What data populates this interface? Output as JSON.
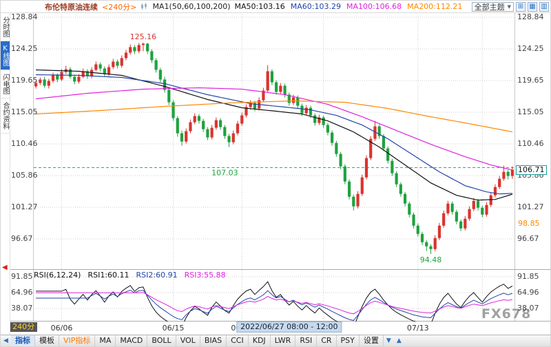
{
  "header": {
    "symbol": "布伦特原油连续",
    "period": "<240分>",
    "ma_group": "MA1(50,60,100,200)",
    "ma_values": [
      {
        "label": "MA50:103.16",
        "color": "#111111"
      },
      {
        "label": "MA60:103.29",
        "color": "#2244aa"
      },
      {
        "label": "MA100:106.68",
        "color": "#dd22dd"
      },
      {
        "label": "MA200:112.21",
        "color": "#ff8800"
      }
    ],
    "theme_select": "全部主题"
  },
  "sidebar": {
    "tabs": [
      {
        "label": "分时图",
        "active": false
      },
      {
        "label": "K线图",
        "active": true
      },
      {
        "label": "闪电图",
        "active": false
      },
      {
        "label": "合约资料",
        "active": false
      }
    ]
  },
  "axes": {
    "price_labels": [
      "128.84",
      "124.25",
      "119.65",
      "115.05",
      "110.46",
      "105.86",
      "101.27",
      "96.67"
    ],
    "rsi_labels": [
      "91.85",
      "64.96",
      "38.07"
    ],
    "dates": [
      {
        "label": "06/06",
        "bar": 6
      },
      {
        "label": "06/15",
        "bar": 32
      },
      {
        "label": "06/24",
        "bar": 48
      },
      {
        "label": "07/13",
        "bar": 89
      }
    ],
    "extra_grid_bars": [
      67,
      104
    ]
  },
  "annotations": {
    "high_label": "125.16",
    "high_bar": 25,
    "low_label": "94.48",
    "low_bar": 92,
    "last_line_label": "107.03",
    "last_line_price": 107.03,
    "line_label_bar": 44,
    "last_price_tag": "106.71",
    "last_price": 106.71,
    "settle_tag": "98.85",
    "settle_price": 98.85,
    "crosshair_label": "2022/06/27 08:00 - 12:00",
    "crosshair_bar": 59,
    "watermark": "FX678",
    "period_badge": "240分"
  },
  "rsi_panel": {
    "title": "RSI(6,12,24)",
    "v1": "RSI1:60.11",
    "v2": "RSI2:60.91",
    "v3": "RSI3:55.88"
  },
  "toolbar": {
    "left_arrow": "◀",
    "items": [
      {
        "label": "指标",
        "name": "indicator",
        "style": "active"
      },
      {
        "label": "模板",
        "name": "template",
        "style": ""
      },
      {
        "label": "VIP指标",
        "name": "vip-indicator",
        "style": "vip"
      },
      {
        "label": "MA",
        "name": "ma",
        "style": ""
      },
      {
        "label": "MACD",
        "name": "macd",
        "style": ""
      },
      {
        "label": "BOLL",
        "name": "boll",
        "style": ""
      },
      {
        "label": "VOL",
        "name": "vol",
        "style": ""
      },
      {
        "label": "BIAS",
        "name": "bias",
        "style": ""
      },
      {
        "label": "CCI",
        "name": "cci",
        "style": ""
      },
      {
        "label": "KDJ",
        "name": "kdj",
        "style": ""
      },
      {
        "label": "LWR",
        "name": "lwr",
        "style": ""
      },
      {
        "label": "RSI",
        "name": "rsi",
        "style": ""
      },
      {
        "label": "CR",
        "name": "cr",
        "style": ""
      },
      {
        "label": "PSY",
        "name": "psy",
        "style": ""
      },
      {
        "label": "设置",
        "name": "settings",
        "style": ""
      }
    ]
  },
  "colors": {
    "up": "#d9342e",
    "down": "#1fa23f",
    "last_line": "#18a0a0",
    "rsi": [
      "#111111",
      "#2244aa",
      "#dd22dd"
    ],
    "accent_blue": "#2b6cc8"
  },
  "chart_data": {
    "type": "candlestick",
    "title": "布伦特原油连续 240分",
    "price_axis_ticks": [
      128.84,
      124.25,
      119.65,
      115.05,
      110.46,
      105.86,
      101.27,
      96.67
    ],
    "rsi_axis_ticks": [
      91.85,
      64.96,
      38.07
    ],
    "rsi_periods": [
      6,
      12,
      24
    ],
    "candles": [
      [
        118.8,
        119.6,
        118.5,
        119.3
      ],
      [
        119.3,
        120.1,
        119.0,
        119.8
      ],
      [
        119.8,
        120.2,
        118.6,
        118.9
      ],
      [
        118.9,
        119.9,
        118.5,
        119.6
      ],
      [
        119.6,
        120.8,
        119.3,
        120.4
      ],
      [
        120.4,
        120.7,
        119.4,
        119.8
      ],
      [
        119.8,
        121.3,
        119.6,
        120.9
      ],
      [
        120.9,
        121.8,
        120.6,
        121.3
      ],
      [
        121.3,
        121.6,
        119.9,
        120.2
      ],
      [
        120.2,
        120.5,
        119.1,
        119.5
      ],
      [
        119.5,
        120.6,
        119.2,
        120.2
      ],
      [
        120.2,
        121.4,
        120.0,
        121.0
      ],
      [
        121.0,
        121.3,
        119.9,
        120.3
      ],
      [
        120.3,
        121.6,
        120.0,
        121.2
      ],
      [
        121.2,
        122.4,
        121.0,
        122.0
      ],
      [
        122.0,
        122.3,
        121.0,
        121.4
      ],
      [
        121.4,
        121.7,
        120.2,
        120.6
      ],
      [
        120.6,
        122.0,
        120.3,
        121.6
      ],
      [
        121.6,
        122.8,
        121.3,
        122.4
      ],
      [
        122.4,
        122.7,
        121.4,
        121.8
      ],
      [
        121.8,
        123.3,
        121.5,
        122.9
      ],
      [
        122.9,
        124.1,
        122.6,
        123.7
      ],
      [
        123.7,
        124.9,
        123.4,
        124.5
      ],
      [
        124.5,
        124.8,
        123.5,
        123.9
      ],
      [
        123.9,
        125.1,
        123.6,
        124.8
      ],
      [
        124.8,
        125.16,
        123.9,
        125.0
      ],
      [
        125.0,
        125.1,
        123.5,
        123.9
      ],
      [
        123.9,
        124.2,
        122.2,
        122.6
      ],
      [
        122.6,
        122.9,
        120.8,
        121.2
      ],
      [
        121.2,
        121.5,
        119.4,
        119.8
      ],
      [
        119.8,
        120.2,
        117.9,
        118.3
      ],
      [
        118.3,
        118.6,
        116.1,
        116.5
      ],
      [
        116.5,
        116.8,
        113.8,
        114.2
      ],
      [
        114.2,
        114.5,
        111.5,
        112.0
      ],
      [
        112.0,
        112.4,
        110.2,
        110.8
      ],
      [
        110.8,
        112.7,
        110.5,
        112.3
      ],
      [
        112.3,
        114.0,
        112.0,
        113.6
      ],
      [
        113.6,
        114.9,
        113.3,
        114.5
      ],
      [
        114.5,
        114.8,
        113.4,
        113.8
      ],
      [
        113.8,
        114.1,
        112.2,
        112.6
      ],
      [
        112.6,
        112.9,
        111.0,
        111.4
      ],
      [
        111.4,
        113.2,
        111.1,
        112.8
      ],
      [
        112.8,
        114.3,
        112.5,
        113.9
      ],
      [
        113.9,
        114.2,
        112.5,
        112.9
      ],
      [
        112.9,
        113.2,
        111.2,
        111.6
      ],
      [
        111.6,
        111.9,
        110.0,
        110.7
      ],
      [
        110.7,
        112.4,
        110.4,
        112.0
      ],
      [
        112.0,
        113.8,
        111.7,
        113.4
      ],
      [
        113.4,
        115.0,
        113.1,
        114.6
      ],
      [
        114.6,
        116.2,
        114.3,
        115.8
      ],
      [
        115.8,
        116.8,
        115.4,
        116.4
      ],
      [
        116.4,
        116.7,
        115.2,
        115.6
      ],
      [
        115.6,
        117.2,
        115.3,
        116.8
      ],
      [
        116.8,
        118.6,
        116.5,
        118.2
      ],
      [
        118.2,
        121.9,
        118.0,
        121.0
      ],
      [
        121.0,
        121.3,
        119.0,
        119.4
      ],
      [
        119.4,
        119.7,
        117.6,
        118.0
      ],
      [
        118.0,
        119.3,
        117.7,
        118.9
      ],
      [
        118.9,
        119.2,
        117.2,
        117.6
      ],
      [
        117.6,
        117.9,
        116.0,
        116.4
      ],
      [
        116.4,
        117.6,
        116.1,
        117.2
      ],
      [
        117.2,
        117.5,
        115.6,
        116.0
      ],
      [
        116.0,
        116.3,
        114.5,
        114.9
      ],
      [
        114.9,
        116.1,
        114.6,
        115.7
      ],
      [
        115.7,
        116.0,
        114.2,
        114.6
      ],
      [
        114.6,
        114.9,
        113.1,
        113.5
      ],
      [
        113.5,
        114.7,
        113.2,
        114.3
      ],
      [
        114.3,
        114.6,
        112.8,
        113.2
      ],
      [
        113.2,
        113.5,
        111.7,
        112.1
      ],
      [
        112.1,
        112.4,
        110.2,
        110.6
      ],
      [
        110.6,
        110.9,
        108.6,
        109.0
      ],
      [
        109.0,
        109.3,
        106.8,
        107.2
      ],
      [
        107.2,
        107.5,
        104.6,
        105.0
      ],
      [
        105.0,
        105.3,
        102.4,
        102.8
      ],
      [
        102.8,
        103.1,
        100.8,
        101.4
      ],
      [
        101.4,
        103.6,
        101.1,
        103.2
      ],
      [
        103.2,
        106.0,
        102.9,
        105.6
      ],
      [
        105.6,
        108.8,
        105.3,
        108.4
      ],
      [
        108.4,
        111.6,
        108.1,
        111.2
      ],
      [
        111.2,
        113.8,
        110.9,
        113.0
      ],
      [
        113.0,
        113.3,
        111.2,
        111.6
      ],
      [
        111.6,
        111.9,
        109.4,
        109.8
      ],
      [
        109.8,
        110.1,
        107.6,
        108.0
      ],
      [
        108.0,
        108.3,
        105.8,
        106.2
      ],
      [
        106.2,
        106.5,
        104.2,
        104.6
      ],
      [
        104.6,
        104.9,
        102.8,
        103.2
      ],
      [
        103.2,
        103.5,
        101.4,
        101.8
      ],
      [
        101.8,
        102.1,
        99.8,
        100.2
      ],
      [
        100.2,
        100.5,
        98.2,
        98.6
      ],
      [
        98.6,
        98.9,
        97.0,
        97.4
      ],
      [
        97.4,
        97.7,
        95.8,
        96.2
      ],
      [
        96.2,
        96.5,
        94.9,
        95.6
      ],
      [
        95.6,
        95.9,
        94.48,
        95.2
      ],
      [
        95.2,
        97.2,
        94.9,
        96.8
      ],
      [
        96.8,
        99.0,
        96.5,
        98.6
      ],
      [
        98.6,
        100.8,
        98.3,
        100.4
      ],
      [
        100.4,
        102.2,
        100.1,
        101.8
      ],
      [
        101.8,
        102.1,
        100.2,
        100.6
      ],
      [
        100.6,
        100.9,
        98.8,
        99.2
      ],
      [
        99.2,
        99.5,
        97.8,
        98.2
      ],
      [
        98.2,
        100.0,
        97.9,
        99.6
      ],
      [
        99.6,
        101.4,
        99.3,
        101.0
      ],
      [
        101.0,
        102.6,
        100.7,
        102.2
      ],
      [
        102.2,
        102.5,
        100.8,
        101.2
      ],
      [
        101.2,
        101.5,
        99.8,
        100.2
      ],
      [
        100.2,
        102.0,
        99.9,
        101.6
      ],
      [
        101.6,
        103.4,
        101.3,
        103.0
      ],
      [
        103.0,
        104.6,
        102.7,
        104.2
      ],
      [
        104.2,
        105.8,
        103.9,
        105.4
      ],
      [
        105.4,
        107.3,
        105.1,
        106.4
      ],
      [
        106.4,
        106.7,
        105.3,
        105.8
      ],
      [
        105.8,
        107.2,
        105.4,
        106.71
      ]
    ],
    "ma": {
      "ma50": {
        "color": "#111111",
        "points": [
          [
            0,
            121.2
          ],
          [
            10,
            121.0
          ],
          [
            20,
            120.4
          ],
          [
            30,
            118.8
          ],
          [
            40,
            116.9
          ],
          [
            48,
            115.7
          ],
          [
            56,
            115.2
          ],
          [
            62,
            114.8
          ],
          [
            68,
            113.8
          ],
          [
            74,
            112.2
          ],
          [
            80,
            110.0
          ],
          [
            86,
            107.4
          ],
          [
            92,
            104.8
          ],
          [
            98,
            103.0
          ],
          [
            103,
            102.3
          ],
          [
            107,
            102.4
          ],
          [
            111,
            103.16
          ]
        ]
      },
      "ma60": {
        "color": "#2244aa",
        "points": [
          [
            0,
            120.5
          ],
          [
            10,
            120.4
          ],
          [
            20,
            120.1
          ],
          [
            30,
            119.2
          ],
          [
            40,
            117.6
          ],
          [
            50,
            116.3
          ],
          [
            58,
            115.8
          ],
          [
            64,
            115.4
          ],
          [
            70,
            114.6
          ],
          [
            76,
            113.2
          ],
          [
            82,
            111.2
          ],
          [
            88,
            108.8
          ],
          [
            94,
            106.4
          ],
          [
            100,
            104.4
          ],
          [
            105,
            103.5
          ],
          [
            108,
            103.2
          ],
          [
            111,
            103.29
          ]
        ]
      },
      "ma100": {
        "color": "#dd22dd",
        "points": [
          [
            0,
            117.0
          ],
          [
            12,
            117.8
          ],
          [
            25,
            118.4
          ],
          [
            38,
            118.6
          ],
          [
            48,
            118.4
          ],
          [
            58,
            117.6
          ],
          [
            68,
            116.2
          ],
          [
            76,
            114.4
          ],
          [
            84,
            112.4
          ],
          [
            92,
            110.4
          ],
          [
            100,
            108.6
          ],
          [
            106,
            107.4
          ],
          [
            111,
            106.68
          ]
        ]
      },
      "ma200": {
        "color": "#ff8800",
        "points": [
          [
            0,
            114.8
          ],
          [
            15,
            115.3
          ],
          [
            30,
            115.9
          ],
          [
            45,
            116.4
          ],
          [
            60,
            116.7
          ],
          [
            72,
            116.5
          ],
          [
            82,
            115.6
          ],
          [
            92,
            114.4
          ],
          [
            100,
            113.5
          ],
          [
            106,
            112.8
          ],
          [
            111,
            112.21
          ]
        ]
      }
    }
  }
}
